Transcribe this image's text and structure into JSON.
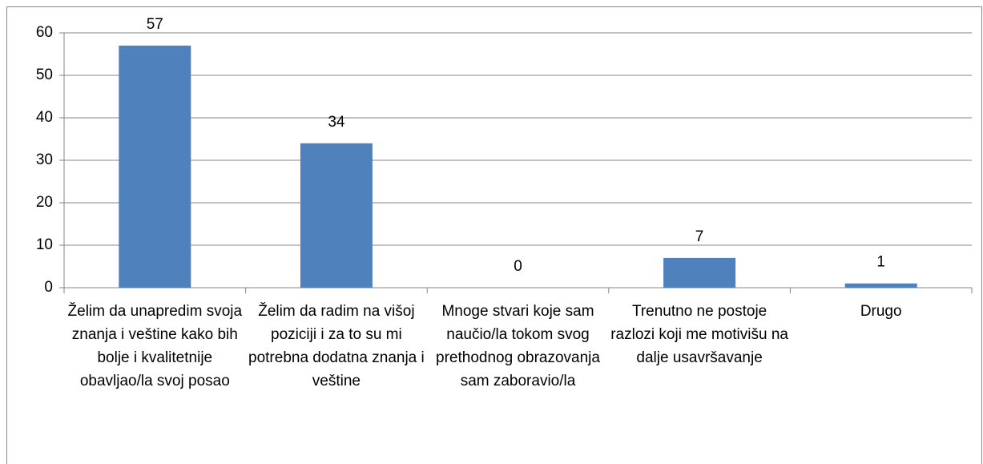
{
  "chart_data": {
    "type": "bar",
    "categories": [
      "Želim da unapredim svoja znanja i veštine kako bih bolje i kvalitetnije obavljao/la svoj posao",
      "Želim da radim na višoj poziciji i za to su mi potrebna dodatna znanja i veštine",
      "Mnoge stvari koje sam naučio/la tokom svog prethodnog obrazovanja sam zaboravio/la",
      "Trenutno ne postoje razlozi koji me motivišu na dalje usavršavanje",
      "Drugo"
    ],
    "values": [
      57,
      34,
      0,
      7,
      1
    ],
    "color": "#4f81bd",
    "ylim": [
      0,
      60
    ],
    "yticks": [
      0,
      10,
      20,
      30,
      40,
      50,
      60
    ],
    "grid": true
  }
}
